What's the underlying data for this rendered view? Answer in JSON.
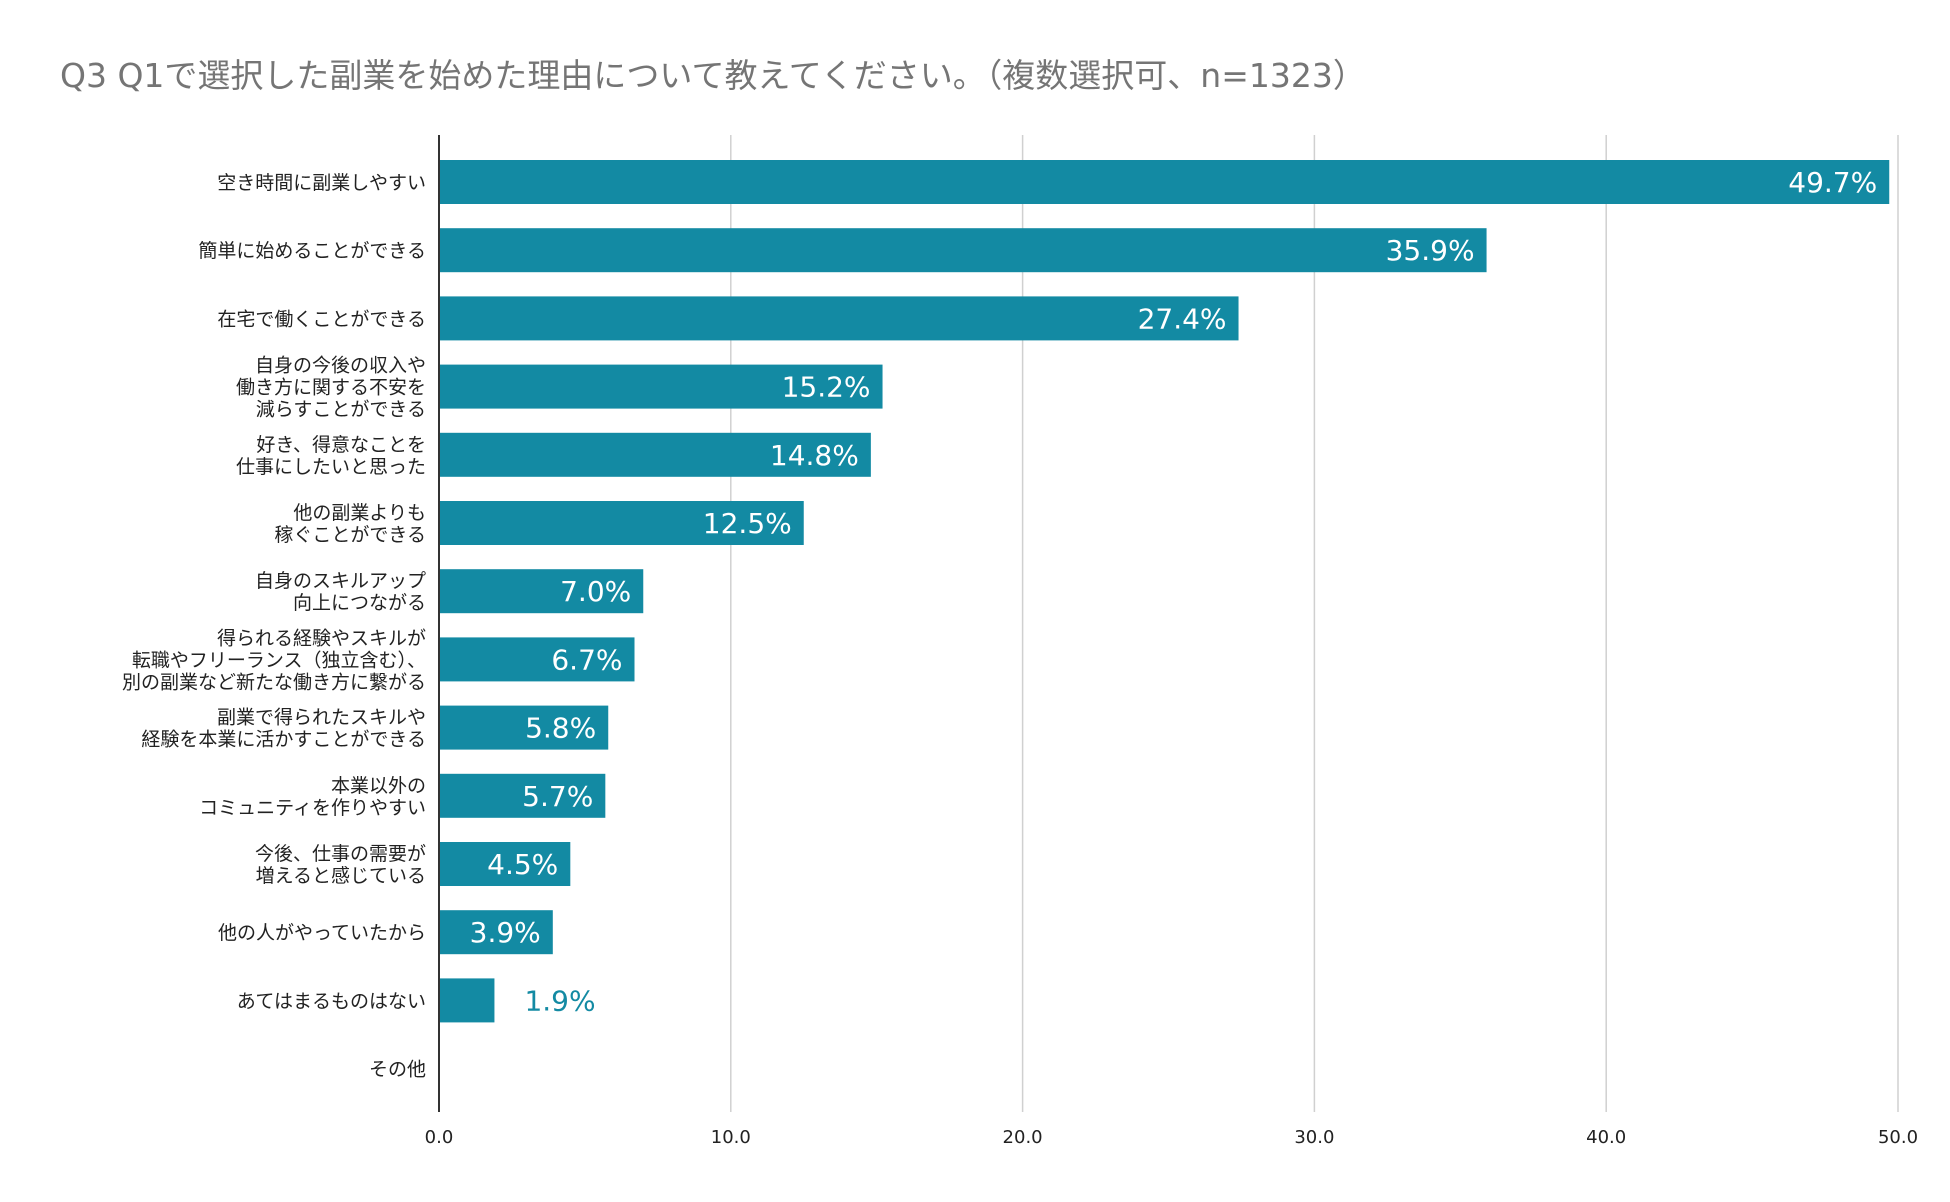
{
  "chart_data": {
    "type": "bar",
    "orientation": "horizontal",
    "title": "Q3 Q1で選択した副業を始めた理由について教えてください。（複数選択可、n=1323）",
    "xlabel": "",
    "ylabel": "",
    "xlim": [
      0,
      50
    ],
    "ticks": [
      0,
      10,
      20,
      30,
      40,
      50
    ],
    "tick_labels": [
      "0.0",
      "10.0",
      "20.0",
      "30.0",
      "40.0",
      "50.0"
    ],
    "grid": true,
    "bar_color": "#138aa3",
    "categories": [
      [
        "空き時間に副業しやすい"
      ],
      [
        "簡単に始めることができる"
      ],
      [
        "在宅で働くことができる"
      ],
      [
        "自身の今後の収入や",
        "働き方に関する不安を",
        "減らすことができる"
      ],
      [
        "好き、得意なことを",
        "仕事にしたいと思った"
      ],
      [
        "他の副業よりも",
        "稼ぐことができる"
      ],
      [
        "自身のスキルアップ",
        "向上につながる"
      ],
      [
        "得られる経験やスキルが",
        "転職やフリーランス（独立含む）、",
        "別の副業など新たな働き方に繋がる"
      ],
      [
        "副業で得られたスキルや",
        "経験を本業に活かすことができる"
      ],
      [
        "本業以外の",
        "コミュニティを作りやすい"
      ],
      [
        "今後、仕事の需要が",
        "増えると感じている"
      ],
      [
        "他の人がやっていたから"
      ],
      [
        "あてはまるものはない"
      ],
      [
        "その他"
      ]
    ],
    "values": [
      49.7,
      35.9,
      27.4,
      15.2,
      14.8,
      12.5,
      7.0,
      6.7,
      5.8,
      5.7,
      4.5,
      3.9,
      1.9,
      0
    ],
    "labels": [
      "49.7%",
      "35.9%",
      "27.4%",
      "15.2%",
      "14.8%",
      "12.5%",
      "7.0%",
      "6.7%",
      "5.8%",
      "5.7%",
      "4.5%",
      "3.9%",
      "1.9%",
      ""
    ]
  }
}
